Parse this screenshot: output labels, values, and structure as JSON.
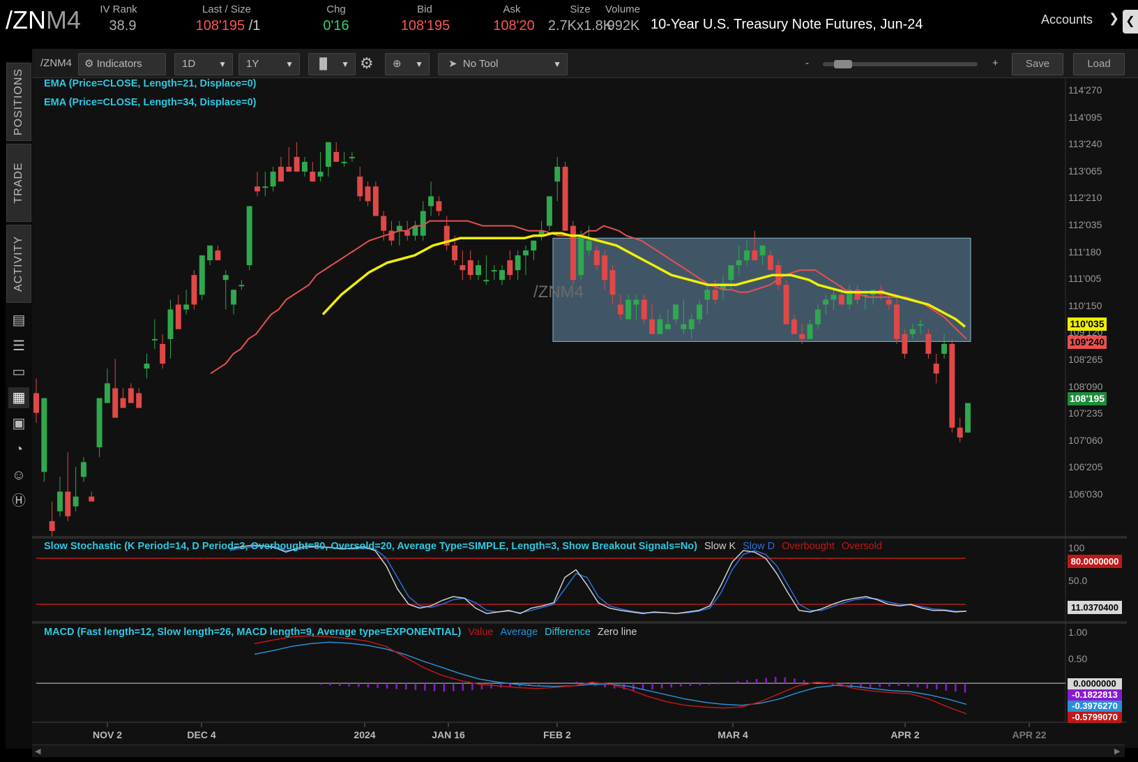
{
  "header": {
    "symbol_main": "/ZN",
    "symbol_suffix": "M4",
    "quotes": [
      {
        "label": "IV Rank",
        "value": "38.9",
        "color": "#b0b0b0"
      },
      {
        "label": "Last / Size",
        "value": "108'195",
        "value2": "/1",
        "color": "#ff5555"
      },
      {
        "label": "Chg",
        "value": "0'16",
        "color": "#3ad06e"
      },
      {
        "label": "Bid",
        "value": "108'195",
        "color": "#ff5555"
      },
      {
        "label": "Ask",
        "value": "108'20",
        "color": "#ff5555"
      },
      {
        "label": "Size",
        "value": "2.7Kx1.8K",
        "color": "#b0b0b0"
      },
      {
        "label": "Volume",
        "value": "992K",
        "color": "#b0b0b0"
      }
    ],
    "description": "10-Year U.S. Treasury Note Futures, Jun-24",
    "accounts_label": "Accounts"
  },
  "sidebar": {
    "tabs": [
      "POSITIONS",
      "TRADE",
      "ACTIVITY"
    ]
  },
  "toolbar": {
    "symbol": "/ZNM4",
    "indicators_label": "Indicators",
    "aggregation": "1D",
    "timeframe": "1Y",
    "drawing_tool": "No Tool",
    "zoom_minus": "-",
    "zoom_plus": "+",
    "save_label": "Save",
    "load_label": "Load"
  },
  "studies": {
    "ema21": "EMA (Price=CLOSE, Length=21, Displace=0)",
    "ema34": "EMA (Price=CLOSE, Length=34, Displace=0)",
    "stoch": "Slow Stochastic (K Period=14, D Period=3, Overbought=80, Oversold=20, Average Type=SIMPLE, Length=3, Show Breakout Signals=No)",
    "stoch_legend": [
      {
        "label": "Slow K",
        "color": "#cfcfcf"
      },
      {
        "label": "Slow D",
        "color": "#2a6fd8"
      },
      {
        "label": "Overbought",
        "color": "#c01818"
      },
      {
        "label": "Oversold",
        "color": "#c01818"
      }
    ],
    "macd": "MACD (Fast length=12, Slow length=26, MACD length=9, Average type=EXPONENTIAL)",
    "macd_legend": [
      {
        "label": "Value",
        "color": "#c01818"
      },
      {
        "label": "Average",
        "color": "#2a8fd8"
      },
      {
        "label": "Difference",
        "color": "#2ec8e0"
      },
      {
        "label": "Zero line",
        "color": "#cfcfcf"
      }
    ]
  },
  "watermark": "/ZNM4",
  "price_axis": [
    "114'270",
    "114'095",
    "113'240",
    "113'065",
    "112'210",
    "112'035",
    "111'180",
    "111'005",
    "110'150",
    "109'120",
    "108'265",
    "108'090",
    "107'235",
    "107'060",
    "106'205",
    "106'030"
  ],
  "price_badges": [
    {
      "value": "110'035",
      "bg": "#f0f000",
      "fg": "#000"
    },
    {
      "value": "109'240",
      "bg": "#e85050",
      "fg": "#000"
    },
    {
      "value": "108'195",
      "bg": "#1e8c3c",
      "fg": "#fff"
    }
  ],
  "stoch_axis": [
    "100",
    "50.0"
  ],
  "stoch_badges": [
    {
      "value": "80.0000000",
      "bg": "#c01818",
      "fg": "#fff"
    },
    {
      "value": "11.0370400",
      "bg": "#d8d8d8",
      "fg": "#000"
    }
  ],
  "macd_axis": [
    "1.00",
    "0.50"
  ],
  "macd_badges": [
    {
      "value": "0.0000000",
      "bg": "#d8d8d8",
      "fg": "#000"
    },
    {
      "value": "-0.1822813",
      "bg": "#8a1ad0",
      "fg": "#fff"
    },
    {
      "value": "-0.3976270",
      "bg": "#2a8fd8",
      "fg": "#fff"
    },
    {
      "value": "-0.5799070",
      "bg": "#c01818",
      "fg": "#fff"
    }
  ],
  "date_axis": [
    "NOV 2",
    "DEC 4",
    "2024",
    "JAN 16",
    "FEB 2",
    "MAR 4",
    "APR 2",
    "APR 22"
  ],
  "chart_data": {
    "type": "candlestick",
    "symbol": "/ZNM4",
    "aggregation": "1D",
    "timeframe": "1Y",
    "price_scale_32nds": true,
    "ylim": [
      105.9,
      115.2
    ],
    "candles_ohlc": [
      [
        108.8,
        109.1,
        108.2,
        108.4
      ],
      [
        107.2,
        108.7,
        107.0,
        108.7
      ],
      [
        106.2,
        106.6,
        105.9,
        106.0
      ],
      [
        106.4,
        107.1,
        106.3,
        106.8
      ],
      [
        106.8,
        107.6,
        106.2,
        106.3
      ],
      [
        106.5,
        107.3,
        106.4,
        106.7
      ],
      [
        107.1,
        107.5,
        107.0,
        107.4
      ],
      [
        106.7,
        106.8,
        106.6,
        106.6
      ],
      [
        107.7,
        108.7,
        107.5,
        108.7
      ],
      [
        108.6,
        109.3,
        108.6,
        109.0
      ],
      [
        108.9,
        109.5,
        108.8,
        108.3
      ],
      [
        108.7,
        108.9,
        108.5,
        108.5
      ],
      [
        108.9,
        109.0,
        108.6,
        108.6
      ],
      [
        108.8,
        108.9,
        108.5,
        108.5
      ],
      [
        109.3,
        109.6,
        109.1,
        109.4
      ],
      [
        109.9,
        110.3,
        109.7,
        109.9
      ],
      [
        109.8,
        110.0,
        109.3,
        109.4
      ],
      [
        109.9,
        110.7,
        109.5,
        110.5
      ],
      [
        110.6,
        110.8,
        110.1,
        110.1
      ],
      [
        110.5,
        110.9,
        110.4,
        110.6
      ],
      [
        111.2,
        111.3,
        110.5,
        110.6
      ],
      [
        110.8,
        111.6,
        110.7,
        111.6
      ],
      [
        111.5,
        111.8,
        111.4,
        111.8
      ],
      [
        111.7,
        111.8,
        111.5,
        111.5
      ],
      [
        111.1,
        111.3,
        110.5,
        111.2
      ],
      [
        110.6,
        110.9,
        110.4,
        110.9
      ],
      [
        111.0,
        111.1,
        110.9,
        111.0
      ],
      [
        111.4,
        112.6,
        111.3,
        112.6
      ],
      [
        113.0,
        113.3,
        112.8,
        112.9
      ],
      [
        113.0,
        113.3,
        112.8,
        113.0
      ],
      [
        113.0,
        113.4,
        112.9,
        113.3
      ],
      [
        113.4,
        113.6,
        113.1,
        113.1
      ],
      [
        113.4,
        113.8,
        113.3,
        113.3
      ],
      [
        113.6,
        113.9,
        113.3,
        113.3
      ],
      [
        113.3,
        113.6,
        113.2,
        113.5
      ],
      [
        113.3,
        113.5,
        113.1,
        113.1
      ],
      [
        113.2,
        113.7,
        113.1,
        113.3
      ],
      [
        113.4,
        113.9,
        113.2,
        113.9
      ],
      [
        113.7,
        113.9,
        113.5,
        113.5
      ],
      [
        113.5,
        113.7,
        113.4,
        113.5
      ],
      [
        113.6,
        113.7,
        113.5,
        113.6
      ],
      [
        113.2,
        113.4,
        112.7,
        112.8
      ],
      [
        113.0,
        113.1,
        112.6,
        112.7
      ],
      [
        113.0,
        113.1,
        112.4,
        112.4
      ],
      [
        112.4,
        112.5,
        111.9,
        112.1
      ],
      [
        112.1,
        112.3,
        111.8,
        111.9
      ],
      [
        112.1,
        112.3,
        111.8,
        112.2
      ],
      [
        112.1,
        112.3,
        111.9,
        112.0
      ],
      [
        112.0,
        112.3,
        111.9,
        112.2
      ],
      [
        112.0,
        112.7,
        111.9,
        112.5
      ],
      [
        112.6,
        113.1,
        112.4,
        112.8
      ],
      [
        112.7,
        112.8,
        112.4,
        112.5
      ],
      [
        112.2,
        112.4,
        111.7,
        111.8
      ],
      [
        111.8,
        112.0,
        111.4,
        111.5
      ],
      [
        111.4,
        111.7,
        111.1,
        111.3
      ],
      [
        111.5,
        111.7,
        111.1,
        111.2
      ],
      [
        111.2,
        111.5,
        111.1,
        111.4
      ],
      [
        111.1,
        111.6,
        111.0,
        111.1
      ],
      [
        111.3,
        111.4,
        111.1,
        111.3
      ],
      [
        111.1,
        111.4,
        111.0,
        111.3
      ],
      [
        111.5,
        111.7,
        111.1,
        111.2
      ],
      [
        111.3,
        111.7,
        111.1,
        111.6
      ],
      [
        111.6,
        111.8,
        111.2,
        111.7
      ],
      [
        111.7,
        111.9,
        111.5,
        111.9
      ],
      [
        112.0,
        112.3,
        111.9,
        112.1
      ],
      [
        112.2,
        112.8,
        112.1,
        112.8
      ],
      [
        113.1,
        113.6,
        112.7,
        113.4
      ],
      [
        113.4,
        113.5,
        112.1,
        112.1
      ],
      [
        112.2,
        112.3,
        111.0,
        111.1
      ],
      [
        111.2,
        112.1,
        111.1,
        112.0
      ],
      [
        111.7,
        112.2,
        111.6,
        111.9
      ],
      [
        111.7,
        111.8,
        111.3,
        111.4
      ],
      [
        111.6,
        111.7,
        110.9,
        111.1
      ],
      [
        111.3,
        111.4,
        110.6,
        110.8
      ],
      [
        110.6,
        110.8,
        110.3,
        110.4
      ],
      [
        110.3,
        110.8,
        110.3,
        110.7
      ],
      [
        110.6,
        110.8,
        110.3,
        110.7
      ],
      [
        110.7,
        110.8,
        110.2,
        110.3
      ],
      [
        110.3,
        110.6,
        110.0,
        110.0
      ],
      [
        110.0,
        110.4,
        110.0,
        110.3
      ],
      [
        110.1,
        110.5,
        110.1,
        110.2
      ],
      [
        110.3,
        110.6,
        110.2,
        110.6
      ],
      [
        110.1,
        110.7,
        110.0,
        110.2
      ],
      [
        110.1,
        110.4,
        109.9,
        110.3
      ],
      [
        110.3,
        110.7,
        110.2,
        110.6
      ],
      [
        110.7,
        111.0,
        110.4,
        110.9
      ],
      [
        110.9,
        111.1,
        110.6,
        110.7
      ],
      [
        110.9,
        111.2,
        110.7,
        111.0
      ],
      [
        111.1,
        111.4,
        110.9,
        111.4
      ],
      [
        111.4,
        111.8,
        111.2,
        111.5
      ],
      [
        111.5,
        111.9,
        111.4,
        111.7
      ],
      [
        111.7,
        112.1,
        111.5,
        111.5
      ],
      [
        111.6,
        111.8,
        111.4,
        111.8
      ],
      [
        111.6,
        111.7,
        111.3,
        111.3
      ],
      [
        111.4,
        111.5,
        110.9,
        111.0
      ],
      [
        111.0,
        111.1,
        110.2,
        110.2
      ],
      [
        110.3,
        110.4,
        110.0,
        110.0
      ],
      [
        110.0,
        110.2,
        109.8,
        109.9
      ],
      [
        109.9,
        110.3,
        109.9,
        110.2
      ],
      [
        110.2,
        110.6,
        110.1,
        110.5
      ],
      [
        110.6,
        110.8,
        110.4,
        110.7
      ],
      [
        110.7,
        110.9,
        110.5,
        110.8
      ],
      [
        110.8,
        111.0,
        110.6,
        110.6
      ],
      [
        110.6,
        111.0,
        110.5,
        110.9
      ],
      [
        110.9,
        111.0,
        110.6,
        110.7
      ],
      [
        110.8,
        110.9,
        110.5,
        110.8
      ],
      [
        110.8,
        110.9,
        110.6,
        110.9
      ],
      [
        110.9,
        111.0,
        110.7,
        110.8
      ],
      [
        110.7,
        110.8,
        110.5,
        110.6
      ],
      [
        110.6,
        110.8,
        109.8,
        109.9
      ],
      [
        110.0,
        110.1,
        109.5,
        109.6
      ],
      [
        110.0,
        110.2,
        109.9,
        110.1
      ],
      [
        110.2,
        110.3,
        110.0,
        110.2
      ],
      [
        110.0,
        110.1,
        109.5,
        109.6
      ],
      [
        109.4,
        109.6,
        109.0,
        109.2
      ],
      [
        109.6,
        110.0,
        109.5,
        109.8
      ],
      [
        109.8,
        109.9,
        108.0,
        108.1
      ],
      [
        108.1,
        108.3,
        107.8,
        107.9
      ],
      [
        108.0,
        108.6,
        108.0,
        108.6
      ]
    ],
    "ema21_close_from_dec": [
      109.2,
      109.3,
      109.4,
      109.6,
      109.7,
      109.9,
      110.0,
      110.2,
      110.4,
      110.5,
      110.7,
      110.8,
      110.9,
      111.0,
      111.2,
      111.3,
      111.4,
      111.5,
      111.6,
      111.7,
      111.8,
      111.9,
      111.95,
      112.0,
      112.05,
      112.1,
      112.1,
      112.2,
      112.2,
      112.3,
      112.3,
      112.3,
      112.3,
      112.3,
      112.3,
      112.25,
      112.2,
      112.2,
      112.2,
      112.2,
      112.2,
      112.15,
      112.1,
      112.1,
      112.1,
      112.05,
      112.0,
      112.0,
      112.0,
      112.0,
      112.1,
      112.1,
      112.2,
      112.15,
      112.1,
      112.0,
      111.95,
      111.9,
      111.8,
      111.7,
      111.6,
      111.5,
      111.4,
      111.3,
      111.2,
      111.1,
      111.0,
      110.95,
      110.9,
      110.9,
      110.85,
      110.85,
      110.9,
      110.95,
      111.0,
      111.1,
      111.2,
      111.25,
      111.3,
      111.3,
      111.3,
      111.2,
      111.1,
      111.0,
      110.9,
      110.85,
      110.8,
      110.75,
      110.75,
      110.75,
      110.75,
      110.75,
      110.75,
      110.7,
      110.65,
      110.55,
      110.45,
      110.35,
      110.2,
      110.05,
      109.9
    ],
    "ema34_close_from_dec_mid": [
      110.4,
      110.6,
      110.8,
      110.95,
      111.1,
      111.25,
      111.35,
      111.45,
      111.5,
      111.55,
      111.6,
      111.7,
      111.8,
      111.85,
      111.9,
      111.95,
      111.95,
      111.95,
      111.95,
      111.95,
      111.95,
      111.95,
      111.95,
      112.0,
      112.0,
      112.05,
      112.05,
      112.0,
      112.0,
      111.95,
      111.9,
      111.85,
      111.8,
      111.7,
      111.6,
      111.5,
      111.4,
      111.3,
      111.2,
      111.15,
      111.1,
      111.05,
      111.0,
      111.0,
      111.0,
      111.0,
      111.05,
      111.1,
      111.15,
      111.2,
      111.2,
      111.2,
      111.15,
      111.1,
      111.0,
      110.95,
      110.9,
      110.85,
      110.85,
      110.85,
      110.85,
      110.85,
      110.8,
      110.75,
      110.7,
      110.65,
      110.6,
      110.5,
      110.4,
      110.3,
      110.15
    ],
    "consolidation_box": {
      "x_start": "FEB 2",
      "x_end": "APR 22",
      "y_low": 109.85,
      "y_high": 111.95
    },
    "stochastic_overbought": 80,
    "stochastic_oversold": 20,
    "stochastic_ylim": [
      0,
      100
    ],
    "slow_k": [
      92,
      95,
      97,
      96,
      94,
      88,
      93,
      96,
      95,
      94,
      92,
      93,
      95,
      90,
      70,
      40,
      20,
      15,
      18,
      25,
      30,
      28,
      15,
      8,
      10,
      12,
      8,
      15,
      18,
      22,
      55,
      65,
      45,
      22,
      15,
      12,
      10,
      8,
      10,
      9,
      8,
      10,
      12,
      18,
      45,
      75,
      90,
      88,
      80,
      60,
      35,
      12,
      10,
      14,
      20,
      25,
      28,
      30,
      26,
      20,
      18,
      20,
      15,
      12,
      12,
      10,
      11
    ],
    "slow_d": [
      90,
      93,
      95,
      96,
      95,
      90,
      91,
      94,
      95,
      94,
      93,
      92,
      93,
      92,
      80,
      55,
      30,
      18,
      16,
      20,
      26,
      28,
      22,
      12,
      10,
      11,
      9,
      12,
      16,
      20,
      40,
      60,
      55,
      30,
      18,
      14,
      11,
      9,
      9,
      9,
      8,
      9,
      11,
      15,
      35,
      65,
      85,
      90,
      85,
      70,
      45,
      20,
      12,
      12,
      17,
      22,
      26,
      28,
      27,
      23,
      20,
      19,
      17,
      14,
      13,
      11,
      11
    ],
    "macd_ylim": [
      -0.7,
      1.1
    ],
    "macd_value": [
      0.75,
      0.82,
      0.88,
      0.9,
      0.88,
      0.85,
      0.8,
      0.7,
      0.5,
      0.3,
      0.15,
      0.05,
      -0.02,
      -0.05,
      -0.08,
      -0.1,
      -0.08,
      -0.05,
      0.02,
      -0.02,
      -0.12,
      -0.25,
      -0.35,
      -0.42,
      -0.45,
      -0.47,
      -0.45,
      -0.35,
      -0.2,
      -0.05,
      0.02,
      0.0,
      -0.1,
      -0.15,
      -0.18,
      -0.2,
      -0.3,
      -0.45,
      -0.58
    ],
    "macd_average": [
      0.55,
      0.62,
      0.7,
      0.75,
      0.78,
      0.76,
      0.72,
      0.65,
      0.55,
      0.42,
      0.3,
      0.18,
      0.08,
      0.02,
      -0.02,
      -0.05,
      -0.06,
      -0.05,
      -0.02,
      -0.02,
      -0.06,
      -0.14,
      -0.22,
      -0.3,
      -0.36,
      -0.4,
      -0.42,
      -0.38,
      -0.3,
      -0.18,
      -0.08,
      -0.04,
      -0.06,
      -0.1,
      -0.14,
      -0.16,
      -0.22,
      -0.3,
      -0.4
    ],
    "macd_diff_hist": [
      -0.03,
      -0.04,
      -0.05,
      -0.06,
      -0.07,
      -0.08,
      -0.09,
      -0.1,
      -0.11,
      -0.12,
      -0.13,
      -0.14,
      -0.15,
      -0.16,
      -0.15,
      -0.14,
      -0.13,
      -0.12,
      -0.1,
      -0.08,
      -0.07,
      -0.06,
      -0.05,
      -0.03,
      -0.02,
      0.0,
      0.02,
      0.03,
      -0.02,
      -0.05,
      -0.08,
      -0.1,
      -0.12,
      -0.14,
      -0.13,
      -0.12,
      -0.1,
      -0.08,
      -0.06,
      -0.05,
      -0.04,
      -0.03,
      -0.02,
      0.02,
      0.04,
      0.06,
      0.08,
      0.1,
      0.12,
      0.11,
      0.09,
      0.06,
      0.03,
      -0.02,
      -0.04,
      -0.06,
      -0.08,
      -0.09,
      -0.08,
      -0.07,
      -0.06,
      -0.05,
      -0.06,
      -0.08,
      -0.1,
      -0.12,
      -0.14,
      -0.16,
      -0.18
    ]
  }
}
